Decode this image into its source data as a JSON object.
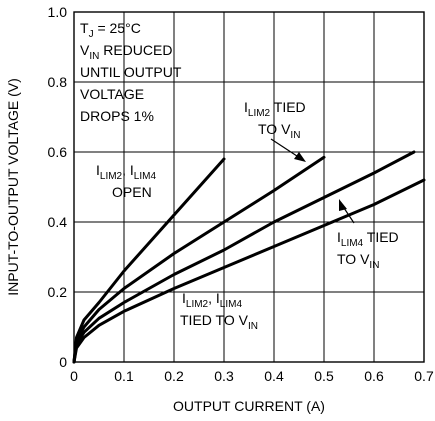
{
  "chart_data": {
    "type": "line",
    "xlabel": "OUTPUT CURRENT (A)",
    "ylabel": "INPUT-TO-OUTPUT VOLTAGE (V)",
    "xlim": [
      0,
      0.7
    ],
    "ylim": [
      0,
      1.0
    ],
    "x_ticks": [
      "0",
      "0.1",
      "0.2",
      "0.3",
      "0.4",
      "0.5",
      "0.6",
      "0.7"
    ],
    "y_ticks": [
      "0",
      "0.2",
      "0.4",
      "0.6",
      "0.8",
      "1.0"
    ],
    "grid": true,
    "series": [
      {
        "name": "ILIM2, ILIM4 OPEN",
        "points": [
          [
            0,
            0
          ],
          [
            0.005,
            0.07
          ],
          [
            0.02,
            0.12
          ],
          [
            0.05,
            0.17
          ],
          [
            0.1,
            0.26
          ],
          [
            0.15,
            0.34
          ],
          [
            0.2,
            0.42
          ],
          [
            0.25,
            0.5
          ],
          [
            0.3,
            0.58
          ]
        ]
      },
      {
        "name": "ILIM2 TIED TO VIN",
        "points": [
          [
            0,
            0
          ],
          [
            0.005,
            0.06
          ],
          [
            0.02,
            0.1
          ],
          [
            0.05,
            0.15
          ],
          [
            0.1,
            0.21
          ],
          [
            0.2,
            0.31
          ],
          [
            0.3,
            0.4
          ],
          [
            0.4,
            0.49
          ],
          [
            0.5,
            0.585
          ]
        ]
      },
      {
        "name": "ILIM4 TIED TO VIN",
        "points": [
          [
            0,
            0
          ],
          [
            0.005,
            0.05
          ],
          [
            0.02,
            0.085
          ],
          [
            0.05,
            0.125
          ],
          [
            0.1,
            0.17
          ],
          [
            0.2,
            0.25
          ],
          [
            0.3,
            0.32
          ],
          [
            0.4,
            0.4
          ],
          [
            0.5,
            0.47
          ],
          [
            0.6,
            0.54
          ],
          [
            0.68,
            0.6
          ]
        ]
      },
      {
        "name": "ILIM2, ILIM4 TIED TO VIN",
        "points": [
          [
            0,
            0
          ],
          [
            0.005,
            0.04
          ],
          [
            0.02,
            0.07
          ],
          [
            0.05,
            0.105
          ],
          [
            0.1,
            0.145
          ],
          [
            0.2,
            0.21
          ],
          [
            0.3,
            0.27
          ],
          [
            0.4,
            0.33
          ],
          [
            0.5,
            0.39
          ],
          [
            0.6,
            0.45
          ],
          [
            0.7,
            0.52
          ]
        ]
      }
    ],
    "annotations": {
      "conditions": {
        "line1_main": "T",
        "line1_sub": "J",
        "line1_rest": " = 25°C",
        "line2_main": "V",
        "line2_sub": "IN",
        "line2_rest": " REDUCED",
        "line3": "UNTIL OUTPUT",
        "line4": "VOLTAGE",
        "line5": "DROPS 1%"
      },
      "open": {
        "p1": "I",
        "s1": "LIM2",
        "p2": ", I",
        "s2": "LIM4",
        "line2": "OPEN"
      },
      "lim2": {
        "p1": "I",
        "s1": "LIM2",
        "p2": " TIED",
        "l2p": "TO V",
        "l2s": "IN"
      },
      "lim4": {
        "p1": "I",
        "s1": "LIM4",
        "p2": " TIED",
        "l2p": "TO V",
        "l2s": "IN"
      },
      "both": {
        "p1": "I",
        "s1": "LIM2",
        "p2": ", I",
        "s2": "LIM4",
        "l2p": "TIED TO V",
        "l2s": "IN"
      }
    }
  }
}
